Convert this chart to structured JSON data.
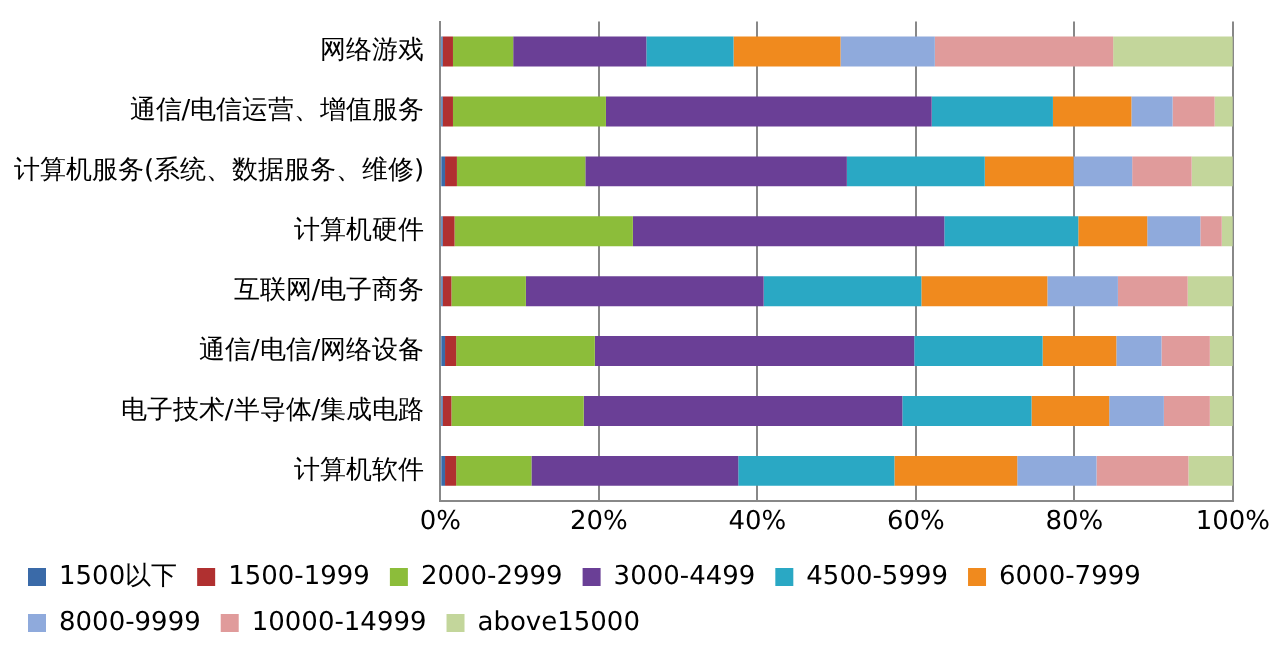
{
  "chart_data": {
    "type": "bar",
    "orientation": "horizontal",
    "stacked": true,
    "categories": [
      "网络游戏",
      "通信/电信运营、增值服务",
      "计算机服务(系统、数据服务、维修)",
      "计算机硬件",
      "互联网/电子商务",
      "通信/电信/网络设备",
      "电子技术/半导体/集成电路",
      "计算机软件"
    ],
    "series": [
      {
        "name": "1500以下",
        "color": "#3a6aa8",
        "values": [
          0.3,
          0.3,
          0.6,
          0.3,
          0.3,
          0.6,
          0.3,
          0.6
        ]
      },
      {
        "name": "1500-1999",
        "color": "#b03030",
        "values": [
          1.3,
          1.3,
          1.5,
          1.5,
          1.1,
          1.4,
          1.1,
          1.4
        ]
      },
      {
        "name": "2000-2999",
        "color": "#8cbd3a",
        "values": [
          7.6,
          19.3,
          16.2,
          22.5,
          9.4,
          17.5,
          16.7,
          9.5
        ]
      },
      {
        "name": "3000-4499",
        "color": "#6a3f96",
        "values": [
          16.8,
          41.1,
          33.0,
          39.3,
          30.0,
          40.3,
          40.2,
          26.1
        ]
      },
      {
        "name": "4500-5999",
        "color": "#2aa8c4",
        "values": [
          11.0,
          15.3,
          17.4,
          16.9,
          19.9,
          16.2,
          16.3,
          19.7
        ]
      },
      {
        "name": "6000-7999",
        "color": "#f08a1e",
        "values": [
          13.5,
          9.9,
          11.2,
          8.7,
          15.9,
          9.3,
          9.8,
          15.5
        ]
      },
      {
        "name": "8000-9999",
        "color": "#8faadc",
        "values": [
          11.9,
          5.2,
          7.4,
          6.7,
          8.9,
          5.7,
          6.9,
          10.0
        ]
      },
      {
        "name": "10000-14999",
        "color": "#e09b9b",
        "values": [
          22.5,
          5.3,
          7.5,
          2.7,
          8.8,
          6.1,
          5.8,
          11.6
        ]
      },
      {
        "name": "above15000",
        "color": "#c3d69b",
        "values": [
          15.1,
          2.3,
          5.2,
          1.4,
          5.7,
          2.9,
          2.9,
          5.6
        ]
      }
    ],
    "xlim": [
      0,
      100
    ],
    "xticks": [
      {
        "value": 0,
        "label": "0%"
      },
      {
        "value": 20,
        "label": "20%"
      },
      {
        "value": 40,
        "label": "40%"
      },
      {
        "value": 60,
        "label": "60%"
      },
      {
        "value": 80,
        "label": "80%"
      },
      {
        "value": 100,
        "label": "100%"
      }
    ],
    "grid": "x",
    "legend": "bottom"
  }
}
